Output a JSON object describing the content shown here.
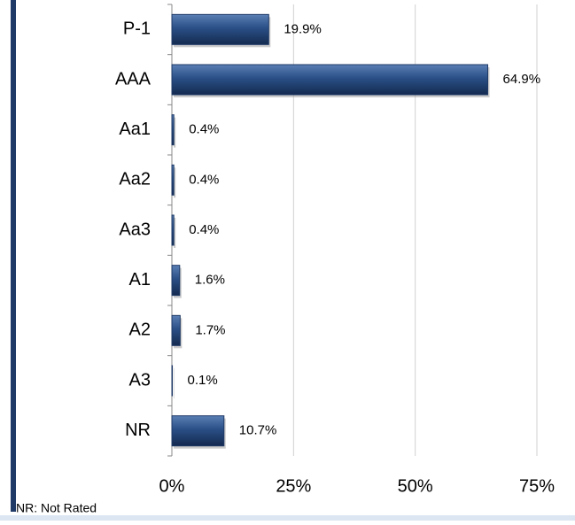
{
  "chart_data": {
    "type": "bar",
    "orientation": "horizontal",
    "categories": [
      "P-1",
      "AAA",
      "Aa1",
      "Aa2",
      "Aa3",
      "A1",
      "A2",
      "A3",
      "NR"
    ],
    "values": [
      19.9,
      64.9,
      0.4,
      0.4,
      0.4,
      1.6,
      1.7,
      0.1,
      10.7
    ],
    "value_labels": [
      "19.9%",
      "64.9%",
      "0.4%",
      "0.4%",
      "0.4%",
      "1.6%",
      "1.7%",
      "0.1%",
      "10.7%"
    ],
    "color": "#1f3a66",
    "xlim": [
      0,
      75
    ],
    "xticks": [
      {
        "value": 0,
        "label": "0%"
      },
      {
        "value": 25,
        "label": "25%"
      },
      {
        "value": 50,
        "label": "50%"
      },
      {
        "value": 75,
        "label": "75%"
      }
    ],
    "grid": true,
    "footnote": "NR: Not Rated"
  }
}
